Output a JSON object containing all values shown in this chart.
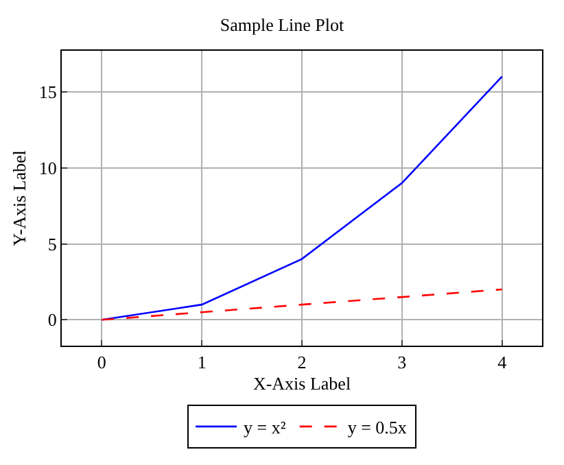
{
  "chart_data": {
    "type": "line",
    "title": "Sample Line Plot",
    "xlabel": "X-Axis Label",
    "ylabel": "Y-Axis Label",
    "x": [
      0,
      1,
      2,
      3,
      4
    ],
    "series": [
      {
        "name": "y = x²",
        "color": "#0000ff",
        "values": [
          0,
          1,
          4,
          9,
          16
        ],
        "line_style": "solid"
      },
      {
        "name": "y = 0.5x",
        "color": "#ff0000",
        "values": [
          0,
          0.5,
          1,
          1.5,
          2
        ],
        "line_style": "dashed"
      }
    ],
    "xlim": [
      -0.4,
      4.4
    ],
    "ylim": [
      -1.7,
      17.7
    ],
    "xticks": [
      0,
      1,
      2,
      3,
      4
    ],
    "yticks": [
      0,
      5,
      10,
      15
    ],
    "grid": true,
    "legend": "bottom",
    "marker": "none"
  }
}
